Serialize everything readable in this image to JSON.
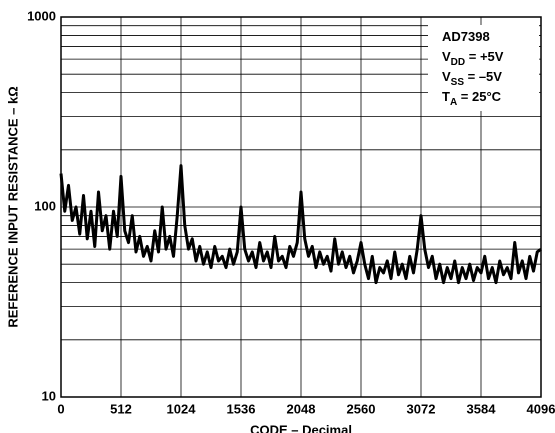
{
  "chart_data": {
    "type": "line",
    "y_label": "REFERENCE INPUT RESISTANCE – kΩ",
    "x_label": "CODE – Decimal",
    "log_y": true,
    "grid": true,
    "xlim": [
      0,
      4096
    ],
    "xticks": [
      0,
      512,
      1024,
      1536,
      2048,
      2560,
      3072,
      3584,
      4096
    ],
    "ylim": [
      10,
      1000
    ],
    "yticks": [
      10,
      100,
      1000
    ],
    "minor_yticks": [
      20,
      30,
      40,
      50,
      60,
      70,
      80,
      90,
      200,
      300,
      400,
      500,
      600,
      700,
      800,
      900
    ],
    "annotations": [
      {
        "main": "AD7398"
      },
      {
        "main": "V",
        "sub": "DD",
        "rest": " = +5V"
      },
      {
        "main": "V",
        "sub": "SS",
        "rest": " = –5V"
      },
      {
        "main": "T",
        "sub": "A",
        "rest": " = 25°C"
      }
    ],
    "x": [
      0,
      32,
      64,
      96,
      128,
      160,
      192,
      224,
      256,
      288,
      320,
      352,
      384,
      416,
      448,
      480,
      512,
      544,
      576,
      608,
      640,
      672,
      704,
      736,
      768,
      800,
      832,
      864,
      896,
      928,
      960,
      992,
      1024,
      1056,
      1088,
      1120,
      1152,
      1184,
      1216,
      1248,
      1280,
      1312,
      1344,
      1376,
      1408,
      1440,
      1472,
      1504,
      1536,
      1568,
      1600,
      1632,
      1664,
      1696,
      1728,
      1760,
      1792,
      1824,
      1856,
      1888,
      1920,
      1952,
      1984,
      2016,
      2048,
      2080,
      2112,
      2144,
      2176,
      2208,
      2240,
      2272,
      2304,
      2336,
      2368,
      2400,
      2432,
      2464,
      2496,
      2528,
      2560,
      2592,
      2624,
      2656,
      2688,
      2720,
      2752,
      2784,
      2816,
      2848,
      2880,
      2912,
      2944,
      2976,
      3008,
      3040,
      3072,
      3104,
      3136,
      3168,
      3200,
      3232,
      3264,
      3296,
      3328,
      3360,
      3392,
      3424,
      3456,
      3488,
      3520,
      3552,
      3584,
      3616,
      3648,
      3680,
      3712,
      3744,
      3776,
      3808,
      3840,
      3872,
      3904,
      3936,
      3968,
      4000,
      4032,
      4064,
      4096
    ],
    "series": [
      {
        "color": "#000000",
        "values": [
          150,
          95,
          130,
          85,
          100,
          72,
          115,
          68,
          95,
          62,
          120,
          75,
          90,
          60,
          95,
          70,
          145,
          75,
          65,
          90,
          58,
          70,
          55,
          62,
          52,
          75,
          58,
          100,
          60,
          70,
          55,
          90,
          165,
          80,
          60,
          68,
          52,
          62,
          50,
          58,
          48,
          62,
          52,
          55,
          48,
          60,
          50,
          58,
          100,
          60,
          52,
          58,
          48,
          65,
          52,
          58,
          48,
          70,
          52,
          55,
          48,
          62,
          55,
          65,
          120,
          68,
          55,
          62,
          48,
          58,
          50,
          55,
          46,
          68,
          50,
          58,
          48,
          55,
          45,
          52,
          65,
          50,
          42,
          55,
          40,
          48,
          45,
          52,
          42,
          58,
          44,
          50,
          42,
          55,
          45,
          60,
          90,
          60,
          48,
          55,
          42,
          50,
          40,
          48,
          42,
          52,
          40,
          48,
          42,
          50,
          41,
          48,
          45,
          55,
          42,
          48,
          40,
          52,
          44,
          48,
          42,
          65,
          45,
          52,
          42,
          55,
          46,
          58,
          60
        ]
      }
    ]
  }
}
